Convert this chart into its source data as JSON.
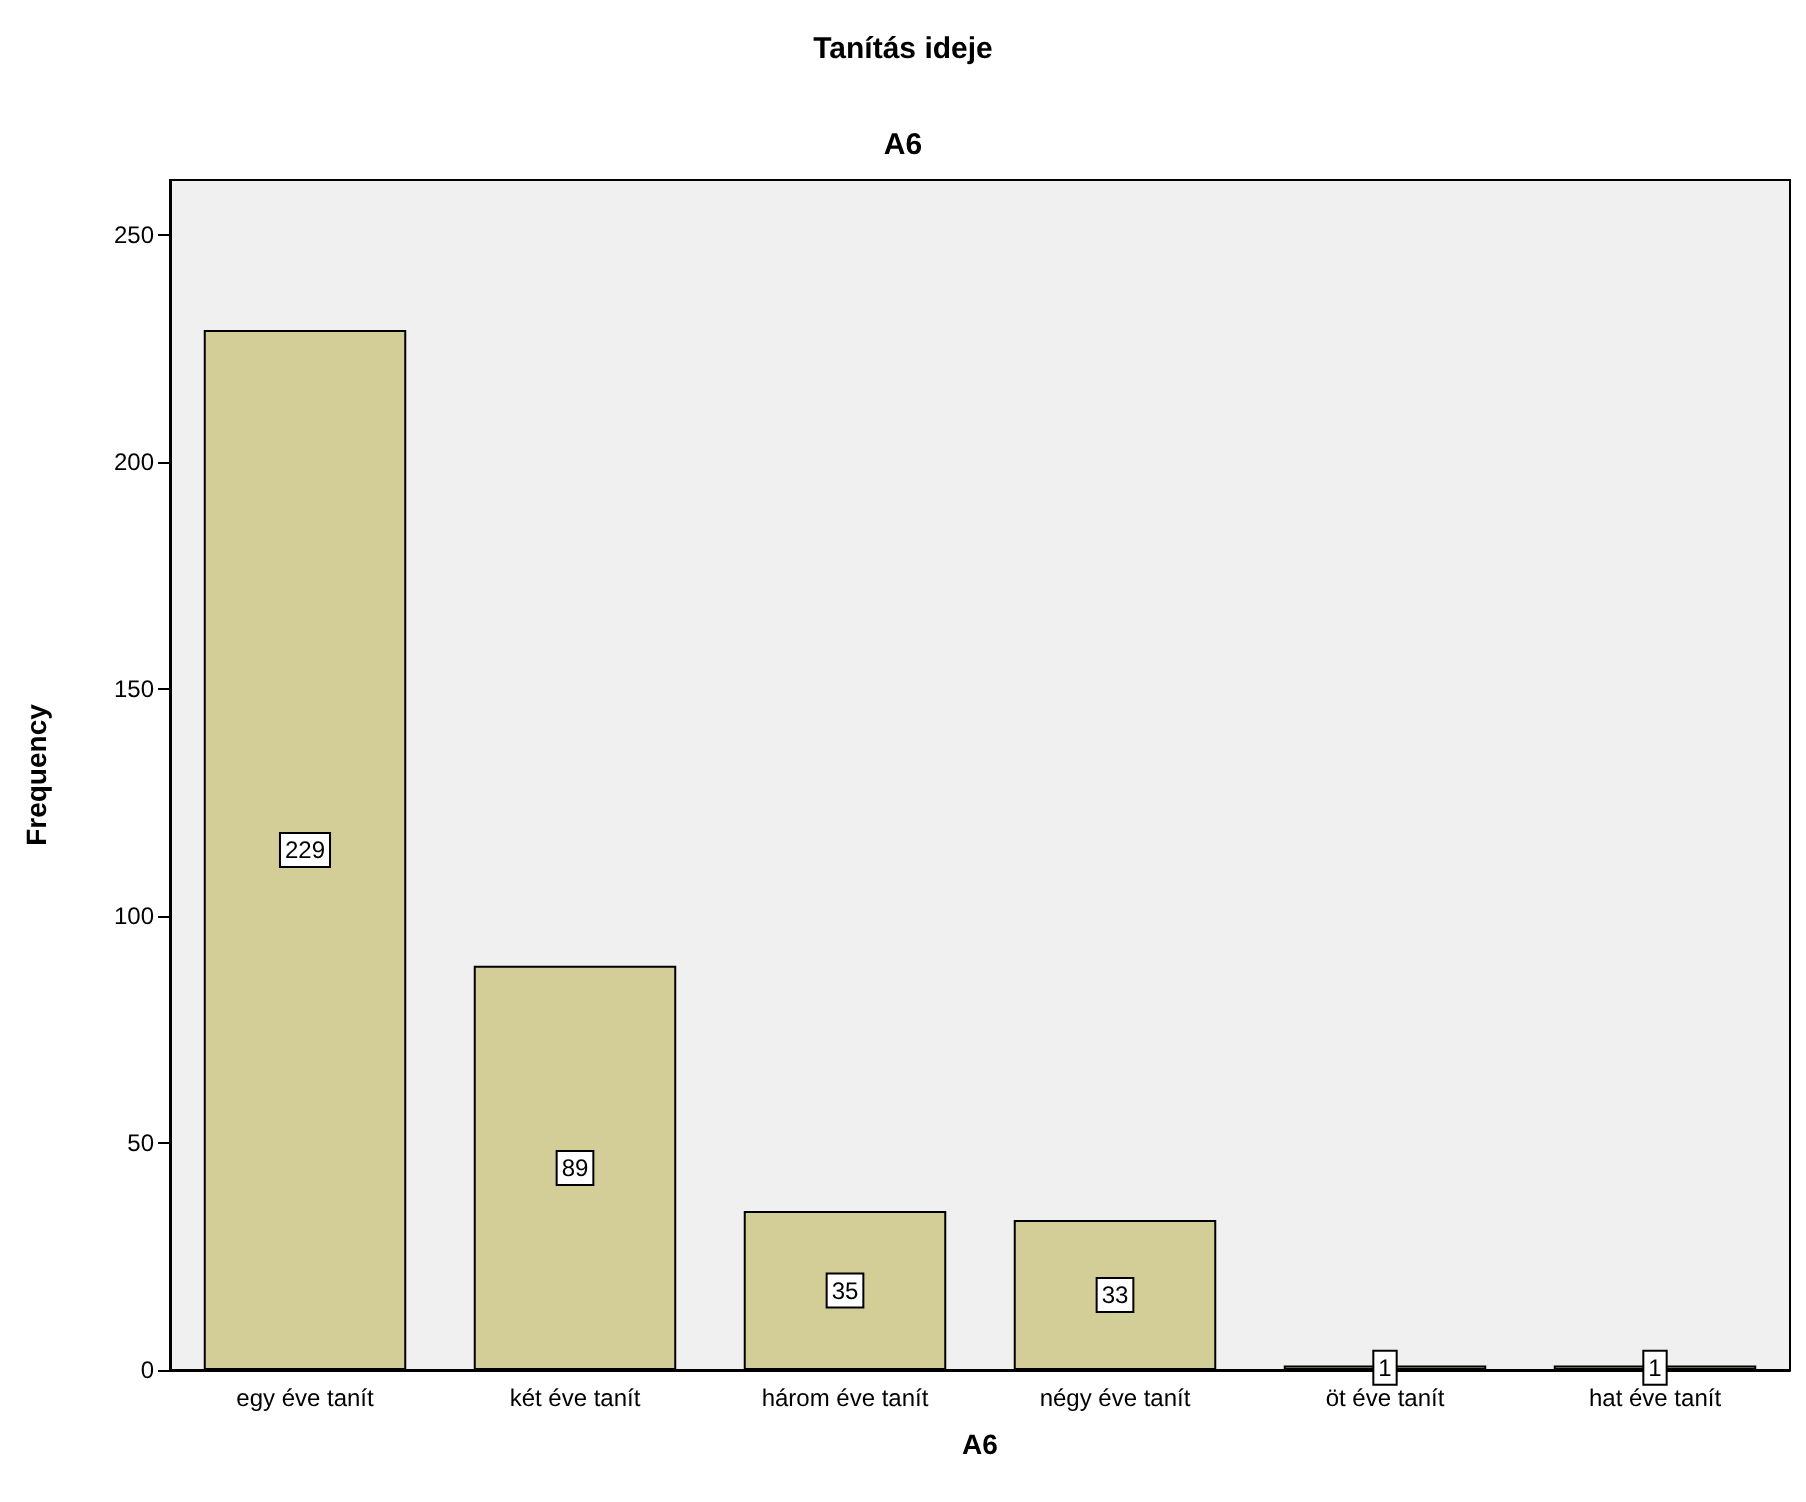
{
  "chart_data": {
    "type": "bar",
    "title": "Tanítás ideje",
    "subtitle": "A6",
    "xlabel": "A6",
    "ylabel": "Frequency",
    "categories": [
      "egy éve tanít",
      "két éve tanít",
      "három éve tanít",
      "négy éve tanít",
      "öt éve tanít",
      "hat éve tanít"
    ],
    "values": [
      229,
      89,
      35,
      33,
      1,
      1
    ],
    "color": "#d3ce97",
    "ylim": [
      0,
      262
    ],
    "yticks": [
      0,
      50,
      100,
      150,
      200,
      250
    ],
    "grid": false,
    "data_labels": true
  }
}
